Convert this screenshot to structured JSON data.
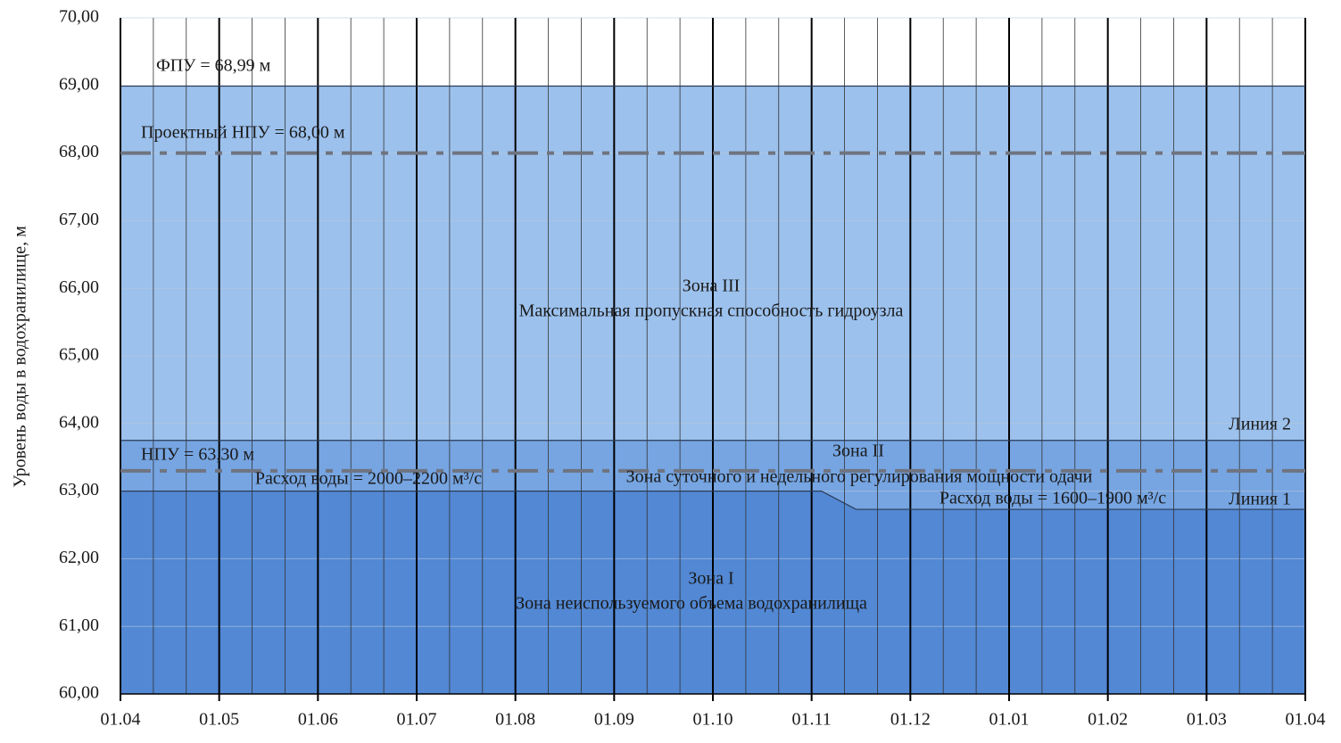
{
  "chart_data": {
    "type": "zone-line",
    "y_label": "Уровень воды в водохранилище, м",
    "xlim": [
      0,
      12
    ],
    "xticks": [
      {
        "value": 0,
        "label": "01.04"
      },
      {
        "value": 1,
        "label": "01.05"
      },
      {
        "value": 2,
        "label": "01.06"
      },
      {
        "value": 3,
        "label": "01.07"
      },
      {
        "value": 4,
        "label": "01.08"
      },
      {
        "value": 5,
        "label": "01.09"
      },
      {
        "value": 6,
        "label": "01.10"
      },
      {
        "value": 7,
        "label": "01.11"
      },
      {
        "value": 8,
        "label": "01.12"
      },
      {
        "value": 9,
        "label": "01.01"
      },
      {
        "value": 10,
        "label": "01.02"
      },
      {
        "value": 11,
        "label": "01.03"
      },
      {
        "value": 12,
        "label": "01.04"
      }
    ],
    "minor_divisions": 3,
    "ylim": [
      60,
      70
    ],
    "yticks": [
      {
        "value": 60,
        "label": "60,00"
      },
      {
        "value": 61,
        "label": "61,00"
      },
      {
        "value": 62,
        "label": "62,00"
      },
      {
        "value": 63,
        "label": "63,00"
      },
      {
        "value": 64,
        "label": "64,00"
      },
      {
        "value": 65,
        "label": "65,00"
      },
      {
        "value": 66,
        "label": "66,00"
      },
      {
        "value": 67,
        "label": "67,00"
      },
      {
        "value": 68,
        "label": "68,00"
      },
      {
        "value": 69,
        "label": "69,00"
      },
      {
        "value": 70,
        "label": "70,00"
      }
    ],
    "series": [
      {
        "name": "Линия 1",
        "color": "#2a3a55",
        "x": [
          0,
          7.1,
          7.45,
          12
        ],
        "values": [
          63.0,
          63.0,
          62.73,
          62.73
        ]
      },
      {
        "name": "Линия 2",
        "color": "#2a3a55",
        "x": [
          0,
          12
        ],
        "values": [
          63.75,
          63.75
        ]
      }
    ],
    "hlines": [
      {
        "value": 68.99,
        "label": "ФПУ = 68,99 м",
        "style": "solid",
        "color": "#2a3a55"
      },
      {
        "value": 68.0,
        "label": "Проектный НПУ = 68,00 м",
        "style": "dashdot",
        "color": "#6f7480"
      },
      {
        "value": 63.3,
        "label": "НПУ = 63,30 м",
        "style": "dashdot",
        "color": "#6f7480"
      }
    ],
    "zones": [
      {
        "name": "Зона I",
        "description": "Зона неиспользуемого объема водохранилища",
        "color": "#5288d4"
      },
      {
        "name": "Зона II",
        "description": "Зона суточного и недельного регулирования мощности одачи",
        "color": "#76a5e2"
      },
      {
        "name": "Зона III",
        "description": "Максимальная пропускная способность гидроузла",
        "color": "#9cc1ed"
      }
    ],
    "annotations": [
      "Расход воды = 2000–2200 м³/с",
      "Расход воды = 1600–1900 м³/с"
    ]
  }
}
